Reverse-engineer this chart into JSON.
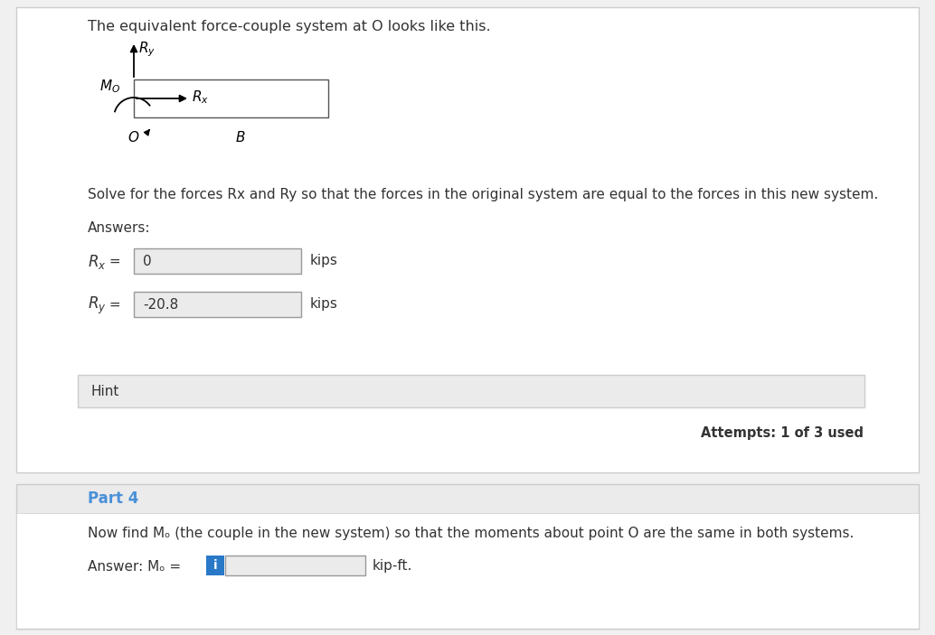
{
  "bg_color": "#f0f0f0",
  "white": "#ffffff",
  "border_color": "#cccccc",
  "text_color": "#333333",
  "blue_color": "#2979c8",
  "part4_text_color": "#4a90d9",
  "hint_bg": "#ebebeb",
  "input_bg": "#ebebeb",
  "input_border": "#999999",
  "title_text": "The equivalent force-couple system at O looks like this.",
  "solve_text": "Solve for the forces Rx and Ry so that the forces in the original system are equal to the forces in this new system.",
  "answers_text": "Answers:",
  "rx_label": "R",
  "rx_sub": "x",
  "rx_eq": " =",
  "rx_value": "0",
  "ry_label": "R",
  "ry_sub": "y",
  "ry_eq": " =",
  "ry_value": "-20.8",
  "units_kips": "kips",
  "hint_text": "Hint",
  "attempts_text": "Attempts: 1 of 3 used",
  "part4_header": "Part 4",
  "part4_body": "Now find Mₒ (the couple in the new system) so that the moments about point O are the same in both systems.",
  "answer_mo_label": "Answer: Mₒ =",
  "units_kipft": "kip-ft.",
  "diagram_label_Mo": "Mo",
  "diagram_label_Ry": "Ry",
  "diagram_label_Rx": "Rx",
  "diagram_label_O": "O",
  "diagram_label_B": "B"
}
